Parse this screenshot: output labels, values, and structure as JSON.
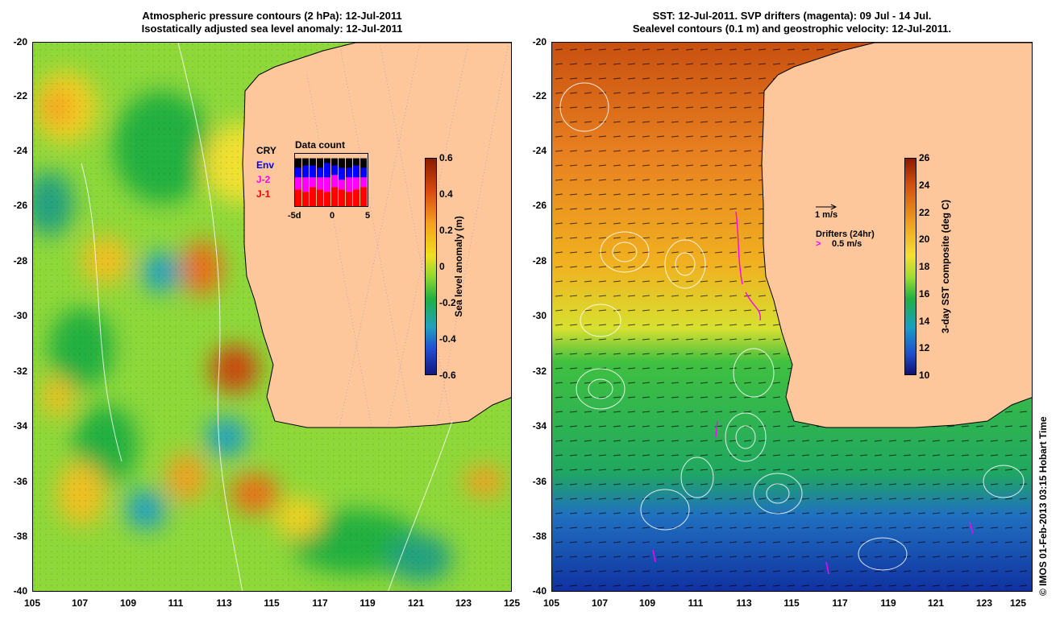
{
  "left_panel": {
    "title_line1": "Atmospheric pressure contours (2 hPa): 12-Jul-2011",
    "title_line2": "Isostatically adjusted sea level anomaly: 12-Jul-2011",
    "colorbar_label": "Sea level anomaly (m)",
    "colorbar_ticks": [
      "0.6",
      "0.4",
      "0.2",
      "0",
      "-0.2",
      "-0.4",
      "-0.6"
    ],
    "satellite_legend": [
      {
        "name": "CRY",
        "color": "#000000"
      },
      {
        "name": "Env",
        "color": "#0000ff"
      },
      {
        "name": "J-2",
        "color": "#ff00ff"
      },
      {
        "name": "J-1",
        "color": "#ff0000"
      }
    ],
    "inset": {
      "title": "Data count",
      "x_ticks": [
        "-5d",
        "0",
        "5"
      ],
      "bars": [
        {
          "j1": 0.35,
          "j2": 0.25,
          "env": 0.2,
          "cry": 0.2
        },
        {
          "j1": 0.3,
          "j2": 0.3,
          "env": 0.25,
          "cry": 0.15
        },
        {
          "j1": 0.4,
          "j2": 0.2,
          "env": 0.25,
          "cry": 0.15
        },
        {
          "j1": 0.35,
          "j2": 0.25,
          "env": 0.2,
          "cry": 0.2
        },
        {
          "j1": 0.3,
          "j2": 0.3,
          "env": 0.3,
          "cry": 0.1
        },
        {
          "j1": 0.4,
          "j2": 0.25,
          "env": 0.2,
          "cry": 0.15
        },
        {
          "j1": 0.35,
          "j2": 0.2,
          "env": 0.25,
          "cry": 0.2
        },
        {
          "j1": 0.3,
          "j2": 0.3,
          "env": 0.2,
          "cry": 0.2
        },
        {
          "j1": 0.35,
          "j2": 0.25,
          "env": 0.25,
          "cry": 0.15
        },
        {
          "j1": 0.4,
          "j2": 0.2,
          "env": 0.2,
          "cry": 0.2
        }
      ]
    },
    "colors": {
      "land": "#fdc79b",
      "coast": "#000000"
    }
  },
  "right_panel": {
    "title_line1": "SST: 12-Jul-2011. SVP drifters (magenta): 09 Jul - 14 Jul.",
    "title_line2": "Sealevel contours (0.1 m) and geostrophic velocity: 12-Jul-2011.",
    "colorbar_label": "3-day SST composite (deg C)",
    "colorbar_ticks": [
      "26",
      "24",
      "22",
      "20",
      "18",
      "16",
      "14",
      "12",
      "10"
    ],
    "velocity_key": "1 m/s",
    "drifters_key_title": "Drifters (24hr)",
    "drifters_key_value": "0.5 m/s",
    "colors": {
      "land": "#fdc79b",
      "drifter": "#ff00ff"
    }
  },
  "axes": {
    "lat_ticks": [
      "-20",
      "-22",
      "-24",
      "-26",
      "-28",
      "-30",
      "-32",
      "-34",
      "-36",
      "-38",
      "-40"
    ],
    "lon_ticks": [
      "105",
      "107",
      "109",
      "111",
      "113",
      "115",
      "117",
      "119",
      "121",
      "123",
      "125"
    ]
  },
  "credit": "© IMOS 01-Feb-2013 03:15 Hobart Time"
}
